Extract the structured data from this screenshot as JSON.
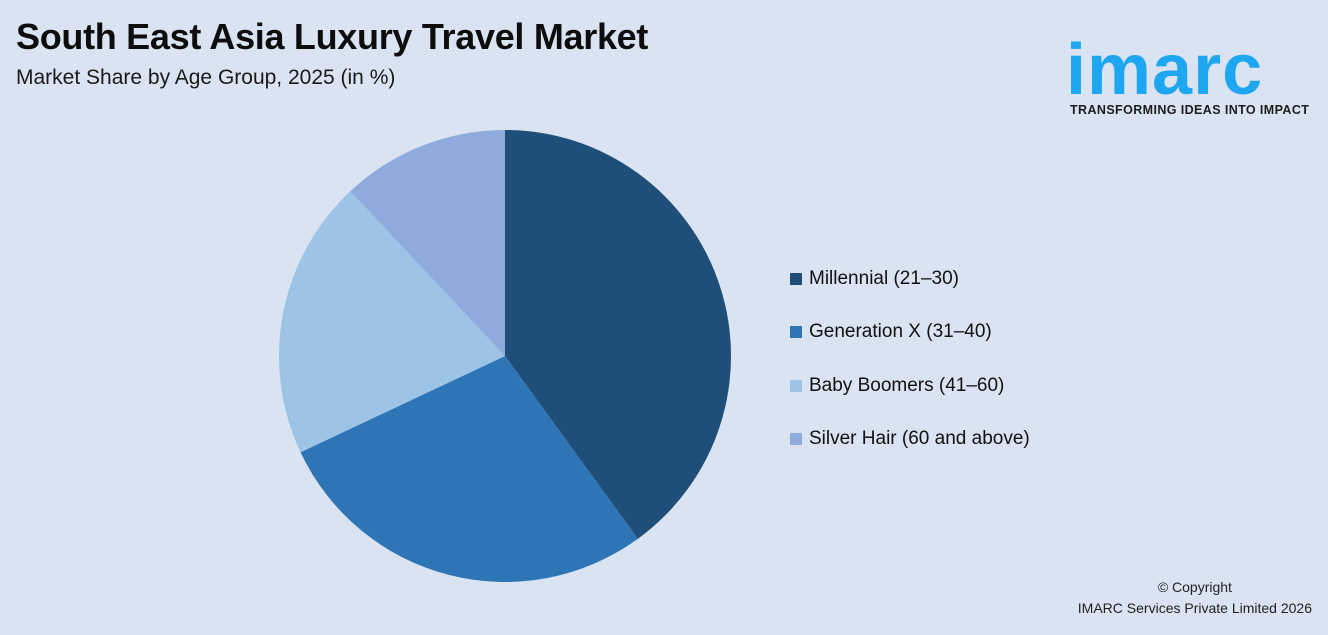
{
  "header": {
    "title": "South East Asia Luxury Travel Market",
    "subtitle": "Market Share by Age Group, 2025 (in %)"
  },
  "logo": {
    "wordmark": "imarc",
    "tagline": "TRANSFORMING IDEAS INTO IMPACT",
    "color": "#1ea7f0"
  },
  "legend": {
    "items": [
      {
        "label": "Millennial (21–30)",
        "color": "#1f4e79"
      },
      {
        "label": "Generation X (31–40)",
        "color": "#2e75b6"
      },
      {
        "label": "Baby Boomers (41–60)",
        "color": "#9dc3e6"
      },
      {
        "label": "Silver Hair (60 and above)",
        "color": "#8faadc"
      }
    ]
  },
  "footer": {
    "copyright_line1": "© Copyright",
    "copyright_line2": "IMARC Services Private Limited 2026"
  },
  "chart_data": {
    "type": "pie",
    "title": "South East Asia Luxury Travel Market",
    "subtitle": "Market Share by Age Group, 2025 (in %)",
    "categories": [
      "Millennial (21–30)",
      "Generation X (31–40)",
      "Baby Boomers (41–60)",
      "Silver Hair (60 and above)"
    ],
    "values": [
      40,
      28,
      20,
      12
    ],
    "colors": [
      "#1f4e79",
      "#2e75b6",
      "#9dc3e6",
      "#8faadc"
    ],
    "start_angle": "12 o'clock, clockwise",
    "data_labels": false,
    "legend_position": "right"
  }
}
